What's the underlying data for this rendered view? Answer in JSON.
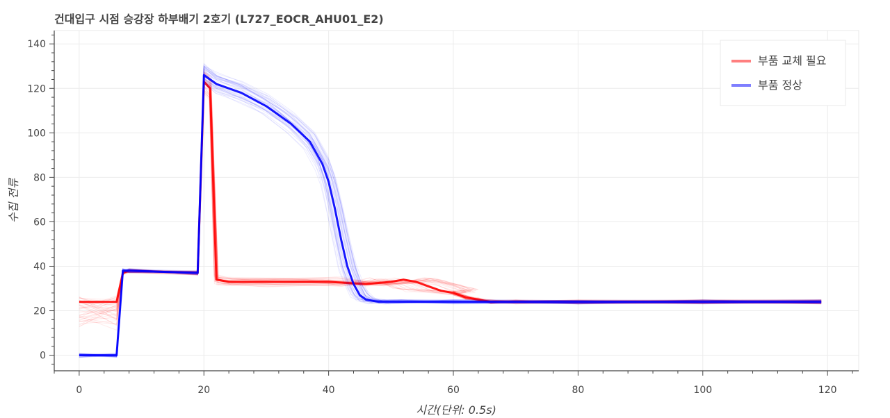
{
  "chart_data": {
    "type": "line",
    "title": "건대입구 시점 승강장 하부배기 2호기 (L727_EOCR_AHU01_E2)",
    "xlabel": "시간(단위: 0.5s)",
    "ylabel": "수집 전류",
    "xlim": [
      -4,
      125
    ],
    "ylim": [
      -7,
      146
    ],
    "x_ticks": [
      0,
      20,
      40,
      60,
      80,
      100,
      120
    ],
    "y_ticks": [
      0,
      20,
      40,
      60,
      80,
      100,
      120,
      140
    ],
    "grid": true,
    "legend_position": "top-right",
    "series": [
      {
        "name": "부품 교체 필요",
        "color": "#ff0000",
        "legend_color": "#ff7f7f",
        "x": [
          0,
          6,
          7,
          8,
          19,
          20,
          21,
          22,
          24,
          30,
          40,
          46,
          50,
          52,
          54,
          56,
          58,
          60,
          62,
          64,
          66,
          70,
          80,
          100,
          119
        ],
        "values": [
          24,
          24,
          37,
          38,
          37,
          123,
          120,
          34,
          33,
          33,
          33,
          32,
          33,
          34,
          33,
          31,
          29,
          28,
          26,
          25,
          24,
          24,
          24,
          24,
          24
        ]
      },
      {
        "name": "부품 정상",
        "color": "#0000ff",
        "legend_color": "#7f7fff",
        "x": [
          0,
          6,
          7,
          8,
          19,
          20,
          22,
          26,
          30,
          34,
          37,
          39,
          40,
          41,
          42,
          43,
          44,
          45,
          46,
          48,
          50,
          60,
          80,
          100,
          119
        ],
        "values": [
          0,
          0,
          38,
          38,
          37,
          126,
          122,
          118,
          112,
          104,
          96,
          86,
          78,
          66,
          52,
          40,
          32,
          27,
          25,
          24,
          24,
          24,
          24,
          24,
          24
        ]
      }
    ]
  }
}
